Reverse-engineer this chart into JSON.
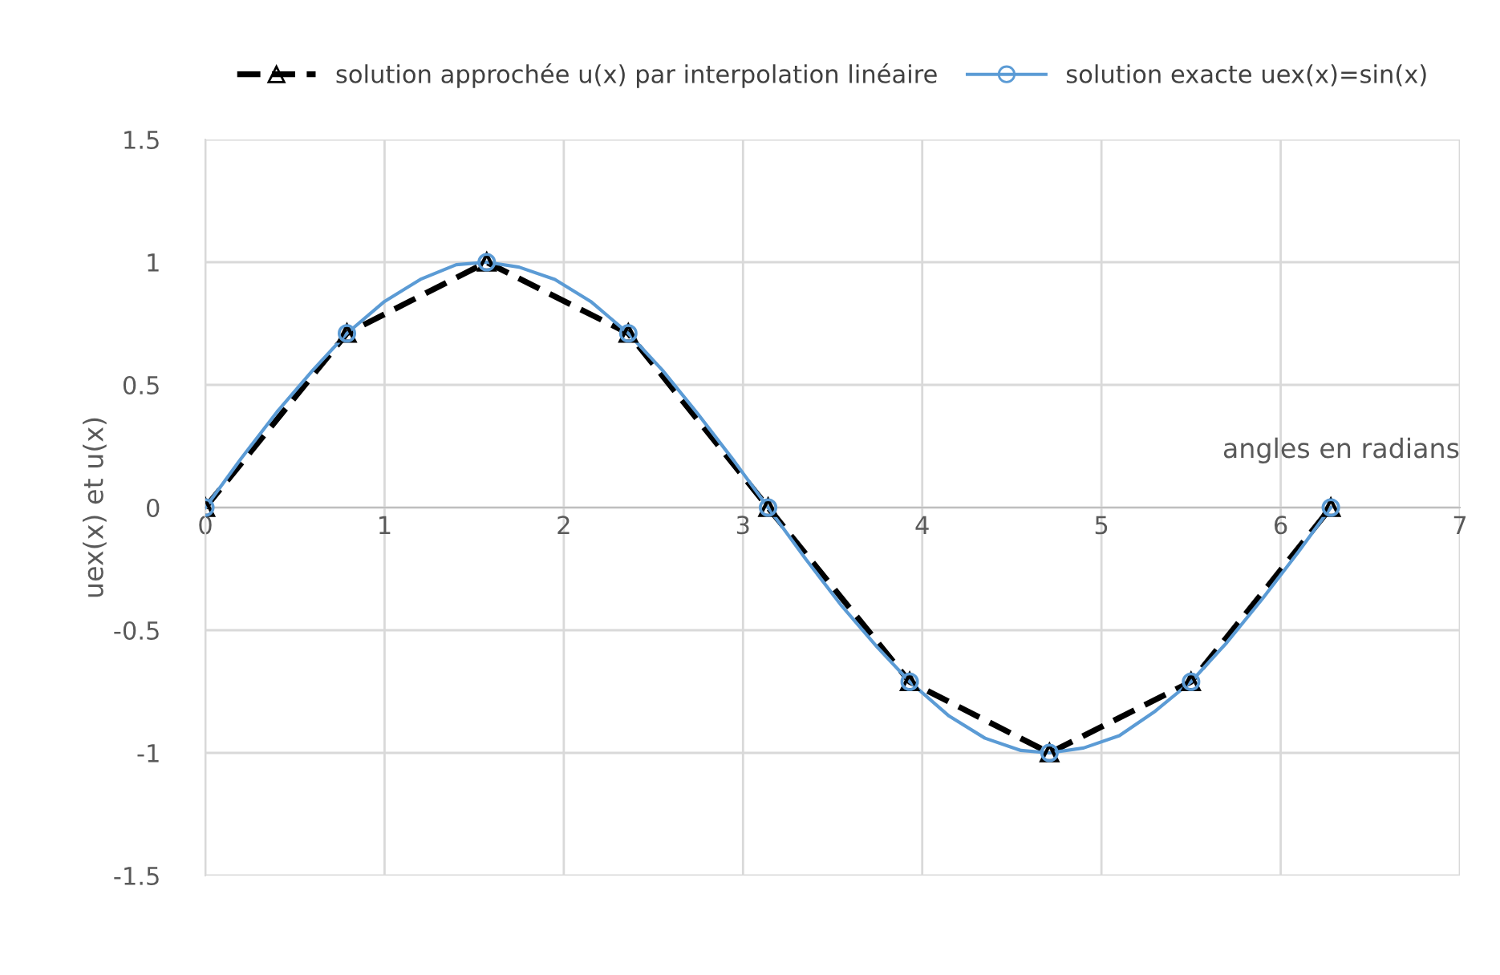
{
  "chart_data": {
    "type": "line",
    "ylabel": "uex(x) et u(x)",
    "xlabel": "angles en radians",
    "xlim": [
      0,
      7
    ],
    "xticks": [
      0,
      1,
      2,
      3,
      4,
      5,
      6,
      7
    ],
    "ylim": [
      -1.5,
      1.5
    ],
    "yticks": [
      -1.5,
      -1,
      -0.5,
      0,
      0.5,
      1,
      1.5
    ],
    "grid": true,
    "legend": "top",
    "series": [
      {
        "name": "solution approchée u(x) par interpolation linéaire",
        "color": "#000000",
        "line_style": "dashed",
        "marker": "triangle",
        "x": [
          0,
          0.79,
          1.57,
          2.36,
          3.14,
          3.93,
          4.71,
          5.5,
          6.28
        ],
        "values": [
          0,
          0.71,
          1,
          0.71,
          0,
          -0.71,
          -1,
          -0.71,
          0
        ]
      },
      {
        "name": "solution exacte uex(x)=sin(x)",
        "color": "#5b9bd5",
        "line_style": "solid",
        "marker": "none",
        "x": [
          0,
          0.2,
          0.4,
          0.6,
          0.79,
          1.0,
          1.2,
          1.4,
          1.57,
          1.75,
          1.95,
          2.15,
          2.36,
          2.55,
          2.75,
          2.95,
          3.14,
          3.35,
          3.55,
          3.75,
          3.93,
          4.15,
          4.35,
          4.55,
          4.71,
          4.9,
          5.1,
          5.3,
          5.5,
          5.7,
          5.9,
          6.1,
          6.28
        ],
        "values": [
          0,
          0.2,
          0.39,
          0.56,
          0.71,
          0.84,
          0.93,
          0.99,
          1,
          0.98,
          0.93,
          0.84,
          0.71,
          0.56,
          0.38,
          0.19,
          0,
          -0.21,
          -0.4,
          -0.57,
          -0.71,
          -0.85,
          -0.94,
          -0.99,
          -1,
          -0.98,
          -0.93,
          -0.83,
          -0.71,
          -0.55,
          -0.37,
          -0.18,
          0
        ]
      },
      {
        "type": "scatter",
        "color": "#5b9bd5",
        "marker": "circle",
        "x": [
          0,
          0.79,
          1.57,
          2.36,
          3.14,
          3.93,
          4.71,
          5.5,
          6.28
        ],
        "values": [
          0,
          0.71,
          1,
          0.71,
          0,
          -0.71,
          -1,
          -0.71,
          0
        ]
      }
    ]
  }
}
